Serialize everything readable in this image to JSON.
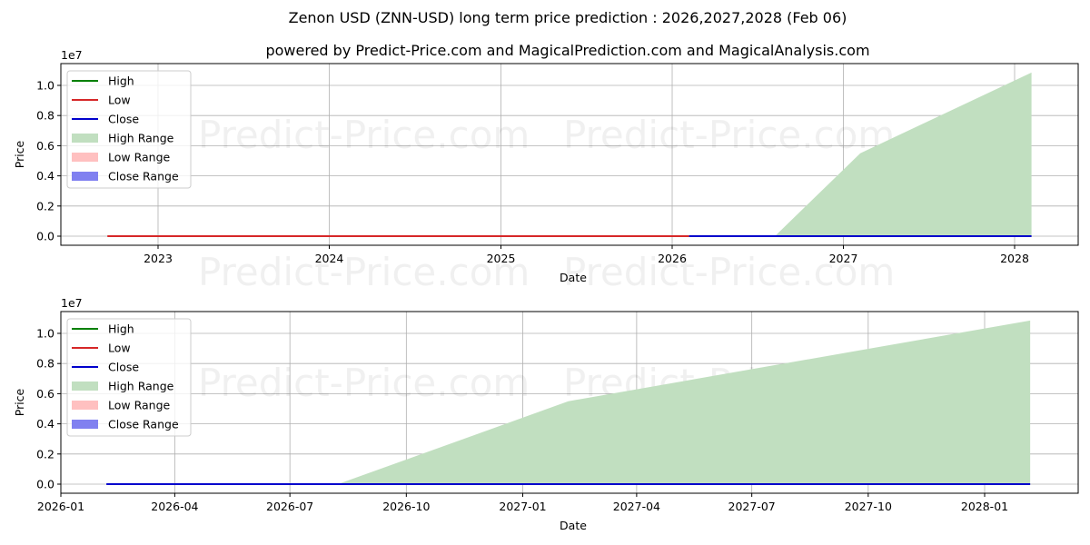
{
  "title": "Zenon USD (ZNN-USD) long term price prediction : 2026,2027,2028 (Feb 06)",
  "subtitle": "powered by Predict-Price.com and MagicalPrediction.com and MagicalAnalysis.com",
  "watermark": "Predict-Price.com",
  "colors": {
    "high": "#008000",
    "low": "#d62728",
    "close": "#0000cc",
    "high_range": "#c1dfc0",
    "low_range": "#ffc0c0",
    "close_range": "#8080f0",
    "grid": "#b0b0b0"
  },
  "legend": [
    {
      "label": "High",
      "type": "line",
      "color": "#008000"
    },
    {
      "label": "Low",
      "type": "line",
      "color": "#d62728"
    },
    {
      "label": "Close",
      "type": "line",
      "color": "#0000cc"
    },
    {
      "label": "High Range",
      "type": "patch",
      "color": "#c1dfc0"
    },
    {
      "label": "Low Range",
      "type": "patch",
      "color": "#ffc0c0"
    },
    {
      "label": "Close Range",
      "type": "patch",
      "color": "#8080f0"
    }
  ],
  "chart_data": [
    {
      "type": "area",
      "title": "Zenon USD (ZNN-USD) long term price prediction : 2026,2027,2028 (Feb 06)",
      "subtitle": "powered by Predict-Price.com and MagicalPrediction.com and MagicalAnalysis.com",
      "xlabel": "Date",
      "ylabel": "Price",
      "y_scale_label": "1e7",
      "x_ticks": [
        "2023",
        "2024",
        "2025",
        "2026",
        "2027",
        "2028"
      ],
      "y_ticks": [
        "0.0",
        "0.2",
        "0.4",
        "0.6",
        "0.8",
        "1.0"
      ],
      "ylim": [
        -500000.0,
        11400000.0
      ],
      "grid": true,
      "legend_position": "upper left",
      "series": [
        {
          "name": "Low",
          "x": [
            "2022-09-15",
            "2026-02-06"
          ],
          "values": [
            0,
            0
          ]
        },
        {
          "name": "Close",
          "x": [
            "2026-02-06",
            "2028-02-06"
          ],
          "values": [
            0,
            0
          ]
        },
        {
          "name": "High Range",
          "x": [
            "2026-08-08",
            "2027-02-06",
            "2028-02-06"
          ],
          "values": [
            0,
            5500000,
            10850000
          ]
        }
      ]
    },
    {
      "type": "area",
      "xlabel": "Date",
      "ylabel": "Price",
      "y_scale_label": "1e7",
      "x_ticks": [
        "2026-01",
        "2026-04",
        "2026-07",
        "2026-10",
        "2027-01",
        "2027-04",
        "2027-07",
        "2027-10",
        "2028-01"
      ],
      "y_ticks": [
        "0.0",
        "0.2",
        "0.4",
        "0.6",
        "0.8",
        "1.0"
      ],
      "ylim": [
        -500000.0,
        11400000.0
      ],
      "grid": true,
      "legend_position": "upper left",
      "series": [
        {
          "name": "Close",
          "x": [
            "2026-02-06",
            "2028-02-06"
          ],
          "values": [
            0,
            0
          ]
        },
        {
          "name": "High Range",
          "x": [
            "2026-08-08",
            "2027-02-06",
            "2028-02-06"
          ],
          "values": [
            0,
            5500000,
            10850000
          ]
        }
      ]
    }
  ]
}
